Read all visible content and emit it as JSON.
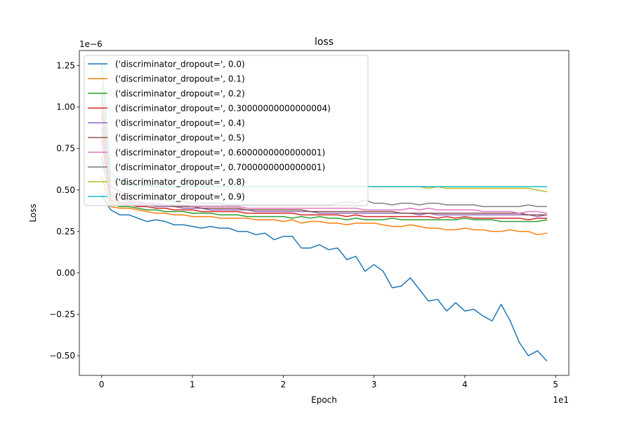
{
  "chart_data": {
    "type": "line",
    "title": "loss",
    "xlabel": "Epoch",
    "ylabel": "Loss",
    "x_offset_text": "1e1",
    "y_offset_text": "1e−6",
    "xlim": [
      -0.245,
      5.145
    ],
    "ylim": [
      -0.6185,
      1.3415
    ],
    "xticks": [
      0,
      1,
      2,
      3,
      4,
      5
    ],
    "xtick_labels": [
      "0",
      "1",
      "2",
      "3",
      "4",
      "5"
    ],
    "yticks": [
      -0.5,
      -0.25,
      0.0,
      0.25,
      0.5,
      0.75,
      1.0,
      1.25
    ],
    "ytick_labels": [
      "−0.50",
      "−0.25",
      "0.00",
      "0.25",
      "0.50",
      "0.75",
      "1.00",
      "1.25"
    ],
    "grid": false,
    "legend_position": "upper-left",
    "series": [
      {
        "name": "('discriminator_dropout=', 0.0)",
        "color": "#1f77b4",
        "first": 0.47,
        "values": [
          0.38,
          0.35,
          0.35,
          0.33,
          0.31,
          0.32,
          0.31,
          0.29,
          0.29,
          0.28,
          0.27,
          0.28,
          0.27,
          0.27,
          0.25,
          0.25,
          0.23,
          0.24,
          0.2,
          0.22,
          0.22,
          0.15,
          0.15,
          0.17,
          0.14,
          0.15,
          0.08,
          0.1,
          0.01,
          0.05,
          0.01,
          -0.09,
          -0.08,
          -0.03,
          -0.1,
          -0.17,
          -0.16,
          -0.23,
          -0.18,
          -0.23,
          -0.22,
          -0.26,
          -0.29,
          -0.19,
          -0.29,
          -0.42,
          -0.5,
          -0.47,
          -0.53
        ]
      },
      {
        "name": "('discriminator_dropout=', 0.1)",
        "color": "#ff7f0e",
        "first": 0.58,
        "values": [
          0.4,
          0.39,
          0.39,
          0.38,
          0.37,
          0.36,
          0.36,
          0.35,
          0.35,
          0.34,
          0.34,
          0.34,
          0.33,
          0.33,
          0.33,
          0.33,
          0.32,
          0.32,
          0.32,
          0.31,
          0.32,
          0.3,
          0.31,
          0.31,
          0.3,
          0.3,
          0.29,
          0.3,
          0.3,
          0.3,
          0.29,
          0.28,
          0.28,
          0.29,
          0.28,
          0.27,
          0.27,
          0.26,
          0.26,
          0.27,
          0.26,
          0.26,
          0.25,
          0.25,
          0.26,
          0.25,
          0.25,
          0.23,
          0.24
        ]
      },
      {
        "name": "('discriminator_dropout=', 0.2)",
        "color": "#2ca02c",
        "first": 0.7,
        "values": [
          0.42,
          0.4,
          0.4,
          0.39,
          0.38,
          0.38,
          0.37,
          0.37,
          0.37,
          0.36,
          0.36,
          0.36,
          0.35,
          0.35,
          0.35,
          0.34,
          0.34,
          0.34,
          0.34,
          0.34,
          0.33,
          0.34,
          0.33,
          0.34,
          0.33,
          0.33,
          0.32,
          0.33,
          0.32,
          0.32,
          0.32,
          0.33,
          0.32,
          0.32,
          0.32,
          0.32,
          0.32,
          0.32,
          0.32,
          0.33,
          0.32,
          0.32,
          0.32,
          0.31,
          0.31,
          0.31,
          0.31,
          0.31,
          0.32
        ]
      },
      {
        "name": "('discriminator_dropout=', 0.30000000000000004)",
        "color": "#d62728",
        "first": 0.8,
        "values": [
          0.44,
          0.42,
          0.41,
          0.4,
          0.4,
          0.39,
          0.39,
          0.38,
          0.38,
          0.38,
          0.37,
          0.37,
          0.37,
          0.37,
          0.37,
          0.36,
          0.36,
          0.36,
          0.36,
          0.36,
          0.36,
          0.35,
          0.35,
          0.35,
          0.35,
          0.35,
          0.34,
          0.35,
          0.34,
          0.34,
          0.34,
          0.34,
          0.34,
          0.34,
          0.34,
          0.34,
          0.33,
          0.34,
          0.33,
          0.34,
          0.33,
          0.33,
          0.33,
          0.33,
          0.33,
          0.33,
          0.32,
          0.33,
          0.33
        ]
      },
      {
        "name": "('discriminator_dropout=', 0.4)",
        "color": "#9467bd",
        "first": 0.87,
        "values": [
          0.46,
          0.43,
          0.42,
          0.41,
          0.41,
          0.4,
          0.4,
          0.4,
          0.39,
          0.39,
          0.39,
          0.38,
          0.38,
          0.38,
          0.38,
          0.38,
          0.37,
          0.37,
          0.37,
          0.37,
          0.37,
          0.37,
          0.37,
          0.36,
          0.36,
          0.36,
          0.36,
          0.36,
          0.36,
          0.36,
          0.36,
          0.36,
          0.36,
          0.36,
          0.35,
          0.36,
          0.35,
          0.35,
          0.35,
          0.35,
          0.35,
          0.35,
          0.35,
          0.35,
          0.35,
          0.35,
          0.35,
          0.34,
          0.35
        ]
      },
      {
        "name": "('discriminator_dropout=', 0.5)",
        "color": "#8c564b",
        "first": 0.95,
        "values": [
          0.47,
          0.45,
          0.43,
          0.42,
          0.42,
          0.41,
          0.41,
          0.4,
          0.4,
          0.4,
          0.39,
          0.39,
          0.39,
          0.39,
          0.39,
          0.38,
          0.38,
          0.38,
          0.38,
          0.38,
          0.38,
          0.38,
          0.37,
          0.37,
          0.37,
          0.37,
          0.37,
          0.37,
          0.37,
          0.37,
          0.37,
          0.37,
          0.36,
          0.36,
          0.36,
          0.36,
          0.36,
          0.36,
          0.36,
          0.36,
          0.36,
          0.36,
          0.36,
          0.36,
          0.36,
          0.36,
          0.35,
          0.35,
          0.35
        ]
      },
      {
        "name": "('discriminator_dropout=', 0.6000000000000001)",
        "color": "#e377c2",
        "first": 1.02,
        "values": [
          0.49,
          0.46,
          0.44,
          0.43,
          0.42,
          0.42,
          0.41,
          0.41,
          0.41,
          0.4,
          0.4,
          0.4,
          0.4,
          0.4,
          0.4,
          0.39,
          0.39,
          0.39,
          0.39,
          0.39,
          0.39,
          0.39,
          0.39,
          0.39,
          0.39,
          0.39,
          0.39,
          0.39,
          0.38,
          0.38,
          0.38,
          0.38,
          0.38,
          0.39,
          0.38,
          0.39,
          0.38,
          0.38,
          0.38,
          0.38,
          0.38,
          0.37,
          0.37,
          0.37,
          0.37,
          0.36,
          0.37,
          0.37,
          0.36
        ]
      },
      {
        "name": "('discriminator_dropout=', 0.7000000000000001)",
        "color": "#7f7f7f",
        "first": 1.08,
        "values": [
          0.52,
          0.49,
          0.47,
          0.46,
          0.45,
          0.44,
          0.44,
          0.43,
          0.43,
          0.42,
          0.42,
          0.42,
          0.42,
          0.41,
          0.41,
          0.41,
          0.41,
          0.41,
          0.41,
          0.41,
          0.41,
          0.41,
          0.41,
          0.41,
          0.41,
          0.42,
          0.43,
          0.42,
          0.44,
          0.42,
          0.42,
          0.41,
          0.42,
          0.42,
          0.41,
          0.42,
          0.42,
          0.41,
          0.41,
          0.41,
          0.41,
          0.4,
          0.4,
          0.4,
          0.4,
          0.4,
          0.41,
          0.4,
          0.4
        ]
      },
      {
        "name": "('discriminator_dropout=', 0.8)",
        "color": "#bcbd22",
        "first": 1.13,
        "values": [
          0.56,
          0.54,
          0.53,
          0.53,
          0.52,
          0.52,
          0.52,
          0.52,
          0.52,
          0.52,
          0.52,
          0.52,
          0.52,
          0.52,
          0.52,
          0.52,
          0.52,
          0.52,
          0.52,
          0.52,
          0.52,
          0.52,
          0.52,
          0.52,
          0.52,
          0.52,
          0.52,
          0.52,
          0.52,
          0.52,
          0.52,
          0.52,
          0.52,
          0.52,
          0.52,
          0.51,
          0.52,
          0.51,
          0.51,
          0.51,
          0.51,
          0.51,
          0.51,
          0.51,
          0.51,
          0.51,
          0.51,
          0.5,
          0.49
        ]
      },
      {
        "name": "('discriminator_dropout=', 0.9)",
        "color": "#17becf",
        "first": 1.27,
        "values": [
          0.6,
          0.56,
          0.54,
          0.53,
          0.53,
          0.52,
          0.52,
          0.52,
          0.52,
          0.52,
          0.52,
          0.52,
          0.52,
          0.52,
          0.52,
          0.52,
          0.52,
          0.52,
          0.52,
          0.52,
          0.52,
          0.52,
          0.52,
          0.52,
          0.52,
          0.52,
          0.52,
          0.52,
          0.52,
          0.52,
          0.52,
          0.52,
          0.52,
          0.52,
          0.52,
          0.52,
          0.52,
          0.52,
          0.52,
          0.52,
          0.52,
          0.52,
          0.52,
          0.52,
          0.52,
          0.52,
          0.52,
          0.52,
          0.52
        ]
      }
    ]
  }
}
